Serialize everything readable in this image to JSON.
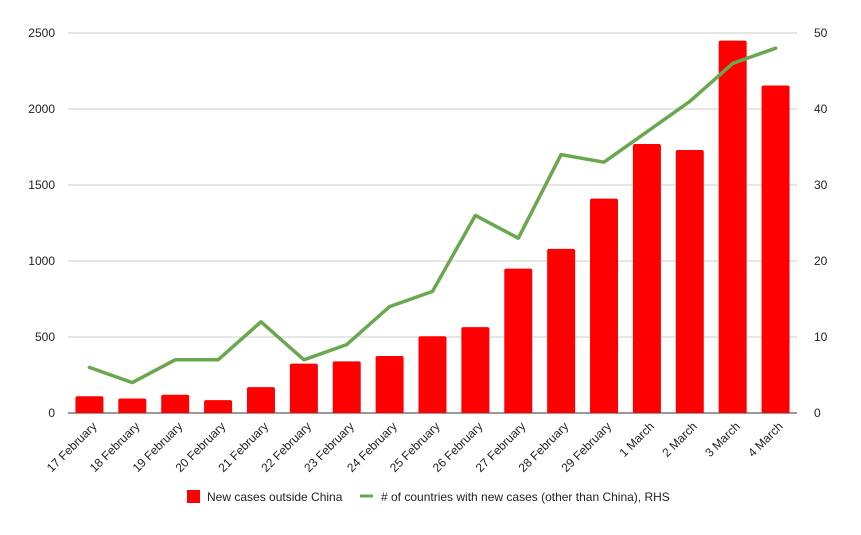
{
  "chart_data": {
    "type": "bar",
    "categories": [
      "17 February",
      "18 February",
      "19 February",
      "20 February",
      "21 February",
      "22 February",
      "23 February",
      "24 February",
      "25 February",
      "26 February",
      "27 February",
      "28 February",
      "29 February",
      "1 March",
      "2 March",
      "3 March",
      "4 March"
    ],
    "series": [
      {
        "name": "New cases outside China",
        "type": "bar",
        "axis": "left",
        "color": "#ff0000",
        "values": [
          110,
          95,
          120,
          85,
          170,
          325,
          340,
          375,
          505,
          565,
          950,
          1080,
          1410,
          1770,
          1730,
          2450,
          2155
        ]
      },
      {
        "name": "# of countries with new cases (other than China), RHS",
        "type": "line",
        "axis": "right",
        "color": "#6aa84f",
        "values": [
          6,
          4,
          7,
          7,
          12,
          7,
          9,
          14,
          16,
          26,
          23,
          34,
          33,
          37,
          41,
          46,
          48
        ]
      }
    ],
    "y_left": {
      "min": 0,
      "max": 2500,
      "ticks": [
        "0",
        "500",
        "1000",
        "1500",
        "2000",
        "2500"
      ]
    },
    "y_right": {
      "min": 0,
      "max": 50,
      "ticks": [
        "0",
        "10",
        "20",
        "30",
        "40",
        "50"
      ]
    },
    "grid": true,
    "legend_position": "bottom"
  }
}
